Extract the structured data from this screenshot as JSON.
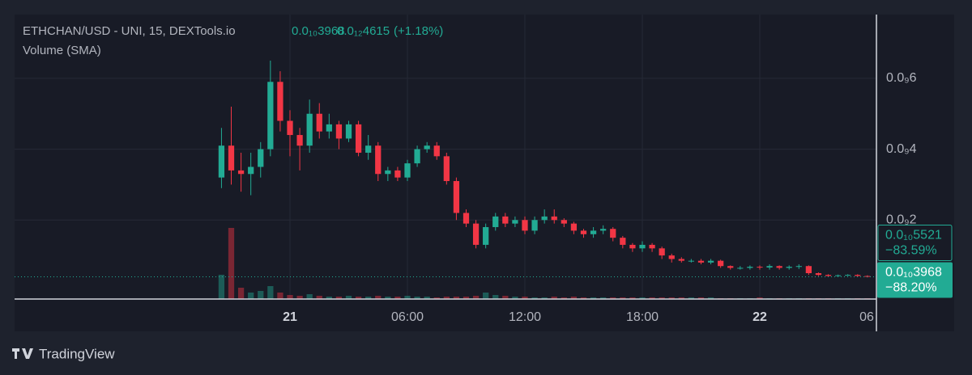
{
  "chart_data": {
    "type": "candlestick",
    "title": "ETHCHAN/USD - UNI, 15, DEXTools.io",
    "header_values": [
      "0.0₁₀3968",
      "0.0₁₂4615",
      "(+1.18%)"
    ],
    "volume_title": "Volume (SMA)",
    "brand": "TradingView",
    "up_color": "#22ab94",
    "down_color": "#f23645",
    "grid": true,
    "xlim": [
      -14.07,
      29.96
    ],
    "xticks": [
      {
        "value": 0,
        "label": "21"
      },
      {
        "value": 6,
        "label": "06:00"
      },
      {
        "value": 12,
        "label": "12:00"
      },
      {
        "value": 18,
        "label": "18:00"
      },
      {
        "value": 24,
        "label": "22"
      },
      {
        "value": 30,
        "label": "06"
      }
    ],
    "ylim": [
      -2.3e-11,
      7.8e-10
    ],
    "yticks": [
      {
        "value": 2e-10,
        "label": "0.0₉2"
      },
      {
        "value": 4e-10,
        "label": "0.0₉4"
      },
      {
        "value": 6e-10,
        "label": "0.0₉6"
      }
    ],
    "x": [
      -3.5,
      -3,
      -2.5,
      -2,
      -1.5,
      -1,
      -0.5,
      0,
      0.5,
      1,
      1.5,
      2,
      2.5,
      3,
      3.5,
      4,
      4.5,
      5,
      5.5,
      6,
      6.5,
      7,
      7.5,
      8,
      8.5,
      9,
      9.5,
      10,
      10.5,
      11,
      11.5,
      12,
      12.5,
      13,
      13.5,
      14,
      14.5,
      15,
      15.5,
      16,
      16.5,
      17,
      17.5,
      18,
      18.5,
      19,
      19.5,
      20,
      20.5,
      21,
      21.5,
      22,
      22.5,
      23,
      23.5,
      24,
      24.5,
      25,
      25.5,
      26,
      26.5,
      27,
      27.5,
      28,
      28.5,
      29,
      29.5
    ],
    "open": [
      3.2e-10,
      4.1e-10,
      3.4e-10,
      3.3e-10,
      3.5e-10,
      4e-10,
      5.9e-10,
      4.8e-10,
      4.4e-10,
      4.1e-10,
      5e-10,
      4.5e-10,
      4.7e-10,
      4.3e-10,
      4.7e-10,
      3.9e-10,
      4.1e-10,
      3.3e-10,
      3.4e-10,
      3.2e-10,
      3.6e-10,
      4e-10,
      4.1e-10,
      3.8e-10,
      3.1e-10,
      2.2e-10,
      1.9e-10,
      1.3e-10,
      1.8e-10,
      2.1e-10,
      1.9e-10,
      2e-10,
      1.7e-10,
      2e-10,
      2.1e-10,
      2e-10,
      1.9e-10,
      1.7e-10,
      1.6e-10,
      1.7e-10,
      1.75e-10,
      1.5e-10,
      1.3e-10,
      1.2e-10,
      1.3e-10,
      1.2e-10,
      1e-10,
      9e-11,
      8.5e-11,
      8.5e-11,
      8e-11,
      8.5e-11,
      7e-11,
      6.5e-11,
      6.5e-11,
      6.8e-11,
      6.6e-11,
      7e-11,
      6.5e-11,
      6.8e-11,
      7e-11,
      5e-11,
      4.5e-11,
      4.2e-11,
      4.4e-11,
      4.5e-11,
      4.2e-11
    ],
    "high": [
      4.6e-10,
      5.2e-10,
      3.9e-10,
      3.9e-10,
      4.2e-10,
      6.5e-10,
      6.2e-10,
      5.1e-10,
      4.6e-10,
      5.4e-10,
      5.3e-10,
      5e-10,
      4.8e-10,
      4.8e-10,
      4.8e-10,
      4.4e-10,
      4.2e-10,
      3.5e-10,
      3.5e-10,
      3.7e-10,
      4.1e-10,
      4.2e-10,
      4.2e-10,
      3.9e-10,
      3.2e-10,
      2.3e-10,
      2e-10,
      1.9e-10,
      2.2e-10,
      2.2e-10,
      2.1e-10,
      2.1e-10,
      2.1e-10,
      2.3e-10,
      2.3e-10,
      2.05e-10,
      1.95e-10,
      1.75e-10,
      1.8e-10,
      1.85e-10,
      1.8e-10,
      1.55e-10,
      1.35e-10,
      1.4e-10,
      1.35e-10,
      1.25e-10,
      1.05e-10,
      9.5e-11,
      9e-11,
      9e-11,
      9e-11,
      8.8e-11,
      7.2e-11,
      7e-11,
      7.2e-11,
      7.2e-11,
      7.5e-11,
      7.2e-11,
      7.2e-11,
      7.5e-11,
      7.2e-11,
      5.2e-11,
      4.7e-11,
      4.6e-11,
      4.7e-11,
      4.7e-11,
      4.4e-11
    ],
    "low": [
      2.9e-10,
      3e-10,
      2.8e-10,
      2.7e-10,
      3.2e-10,
      3.8e-10,
      4.5e-10,
      3.8e-10,
      3.4e-10,
      3.9e-10,
      4.3e-10,
      4.3e-10,
      4e-10,
      4.2e-10,
      3.8e-10,
      3.7e-10,
      3.1e-10,
      3.1e-10,
      3.1e-10,
      3.1e-10,
      3.5e-10,
      3.9e-10,
      3.7e-10,
      3e-10,
      2e-10,
      1.8e-10,
      1.2e-10,
      1.2e-10,
      1.7e-10,
      1.8e-10,
      1.8e-10,
      1.6e-10,
      1.6e-10,
      1.9e-10,
      1.9e-10,
      1.8e-10,
      1.6e-10,
      1.5e-10,
      1.5e-10,
      1.6e-10,
      1.4e-10,
      1.2e-10,
      1.1e-10,
      1.1e-10,
      1.1e-10,
      9e-11,
      8e-11,
      8e-11,
      8e-11,
      7.5e-11,
      7.5e-11,
      6.5e-11,
      6e-11,
      6e-11,
      6e-11,
      6e-11,
      6e-11,
      6e-11,
      6e-11,
      6.2e-11,
      4.5e-11,
      4.2e-11,
      4e-11,
      4e-11,
      4.2e-11,
      4e-11,
      3.8e-11
    ],
    "close": [
      4.1e-10,
      3.4e-10,
      3.3e-10,
      3.5e-10,
      4e-10,
      5.9e-10,
      4.8e-10,
      4.4e-10,
      4.1e-10,
      5e-10,
      4.5e-10,
      4.7e-10,
      4.3e-10,
      4.7e-10,
      3.9e-10,
      4.1e-10,
      3.3e-10,
      3.4e-10,
      3.2e-10,
      3.6e-10,
      4e-10,
      4.1e-10,
      3.8e-10,
      3.1e-10,
      2.2e-10,
      1.9e-10,
      1.3e-10,
      1.8e-10,
      2.1e-10,
      1.9e-10,
      2e-10,
      1.7e-10,
      2e-10,
      2.1e-10,
      2e-10,
      1.9e-10,
      1.7e-10,
      1.6e-10,
      1.7e-10,
      1.75e-10,
      1.5e-10,
      1.3e-10,
      1.2e-10,
      1.3e-10,
      1.2e-10,
      1e-10,
      9e-11,
      8.5e-11,
      8.5e-11,
      8e-11,
      8.5e-11,
      7e-11,
      6.5e-11,
      6.5e-11,
      6.8e-11,
      6.6e-11,
      7e-11,
      6.5e-11,
      6.8e-11,
      7e-11,
      5e-11,
      4.5e-11,
      4.2e-11,
      4.4e-11,
      4.5e-11,
      4.2e-11,
      3.968e-11
    ],
    "volume": [
      30,
      88,
      14,
      8,
      10,
      16,
      8,
      5,
      4,
      6,
      4,
      3,
      3,
      4,
      3,
      3,
      4,
      3,
      3,
      4,
      3,
      3,
      2,
      3,
      3,
      3,
      4,
      8,
      5,
      4,
      3,
      3,
      2,
      2,
      3,
      2,
      3,
      2,
      2,
      2,
      2,
      2,
      2,
      2,
      2,
      2,
      2,
      2,
      2,
      2,
      2,
      1,
      1,
      1,
      1,
      2,
      1,
      1,
      1,
      1,
      1,
      1,
      1,
      1,
      1,
      1,
      1
    ],
    "marker": {
      "value": 5.521e-11,
      "label": "0.0₁₀5521",
      "change": "−83.59%"
    },
    "last": {
      "value": 3.968e-11,
      "label": "0.0₁₀3968",
      "change": "−88.20%"
    }
  }
}
